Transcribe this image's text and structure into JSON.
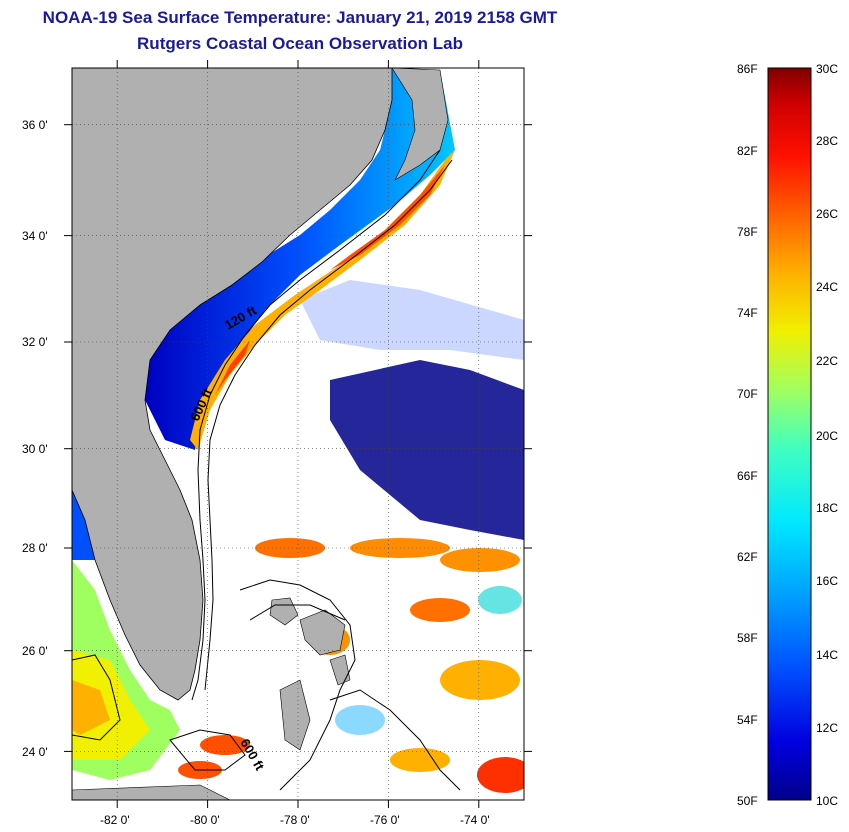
{
  "title": {
    "line1": "NOAA-19 Sea Surface Temperature:  January 21, 2019 2158 GMT",
    "line2": "Rutgers Coastal Ocean Observation Lab"
  },
  "map": {
    "lat_labels": [
      "36 0'",
      "34 0'",
      "32 0'",
      "30 0'",
      "28 0'",
      "26 0'",
      "24 0'"
    ],
    "lon_labels": [
      "-82 0'",
      "-80 0'",
      "-78 0'",
      "-76 0'",
      "-74 0'"
    ],
    "lat_range": [
      23.0,
      37.0
    ],
    "lon_range": [
      -83.0,
      -73.0
    ],
    "isobath_labels": [
      "120 ft",
      "600 ft",
      "600 ft"
    ],
    "land_color": "#b0b0b0"
  },
  "colorbar": {
    "fahrenheit": [
      "86F",
      "82F",
      "78F",
      "74F",
      "70F",
      "66F",
      "62F",
      "58F",
      "54F",
      "50F"
    ],
    "celsius": [
      "30C",
      "28C",
      "26C",
      "24C",
      "22C",
      "20C",
      "18C",
      "16C",
      "14C",
      "12C",
      "10C"
    ],
    "range_c": [
      10,
      30
    ],
    "colors": [
      "#00008a",
      "#0000e0",
      "#0050ff",
      "#00a0ff",
      "#00e8ff",
      "#40ffc0",
      "#a0ff60",
      "#f0f000",
      "#ffb000",
      "#ff6000",
      "#ff1000",
      "#d00000",
      "#800000"
    ]
  }
}
